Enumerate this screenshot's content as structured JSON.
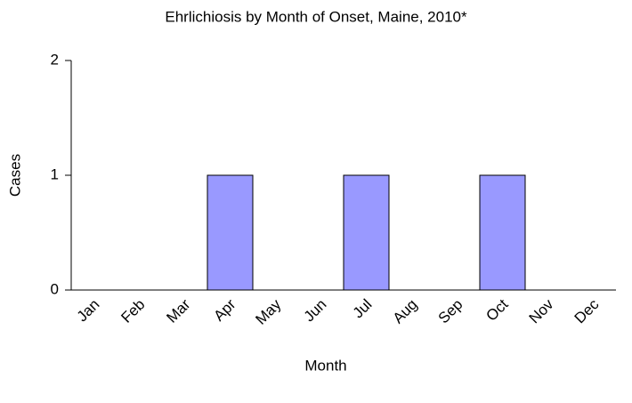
{
  "chart_data": {
    "type": "bar",
    "title": "Ehrlichiosis by Month of Onset, Maine, 2010*",
    "x_label": "Month",
    "y_label": "Cases",
    "categories": [
      "Jan",
      "Feb",
      "Mar",
      "Apr",
      "May",
      "Jun",
      "Jul",
      "Aug",
      "Sep",
      "Oct",
      "Nov",
      "Dec"
    ],
    "values": [
      0,
      0,
      0,
      1,
      0,
      0,
      1,
      0,
      0,
      1,
      0,
      0
    ],
    "color": "#9999ff",
    "ylim": [
      0,
      2
    ],
    "yticks": [
      0,
      1,
      2
    ],
    "grid": false
  }
}
